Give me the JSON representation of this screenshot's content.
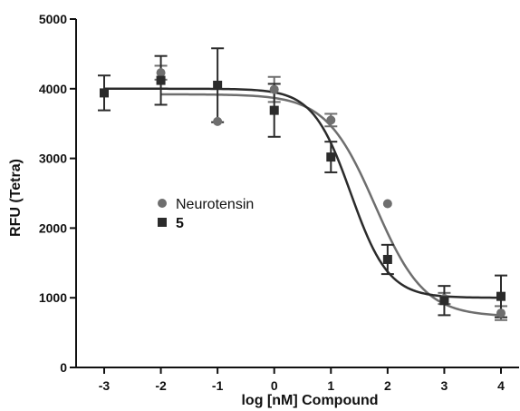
{
  "chart_data": {
    "type": "scatter",
    "title": "",
    "xlabel": "log [nM] Compound",
    "ylabel": "RFU (Tetra)",
    "xlim": [
      -3,
      4
    ],
    "ylim": [
      0,
      5000
    ],
    "x_ticks": [
      "-3",
      "-2",
      "-1",
      "0",
      "1",
      "2",
      "3",
      "4"
    ],
    "y_ticks": [
      "0",
      "1000",
      "2000",
      "3000",
      "4000",
      "5000"
    ],
    "grid": false,
    "legend_position": "center-left",
    "series": [
      {
        "name": "Neurotensin",
        "marker": "circle",
        "color": "#6e6e6e",
        "points": [
          {
            "x": -2,
            "y": 4230,
            "err": 100
          },
          {
            "x": -1,
            "y": 3530,
            "err": 0
          },
          {
            "x": 0,
            "y": 3990,
            "err": 180
          },
          {
            "x": 1,
            "y": 3550,
            "err": 90
          },
          {
            "x": 2,
            "y": 2350,
            "err": 0
          },
          {
            "x": 3,
            "y": 990,
            "err": 80
          },
          {
            "x": 4,
            "y": 780,
            "err": 100
          }
        ],
        "fit": {
          "top": 3920,
          "bottom": 730,
          "logEC50": 1.78,
          "hill": -1.0
        }
      },
      {
        "name": "5",
        "marker": "square",
        "color": "#2b2b2b",
        "points": [
          {
            "x": -3,
            "y": 3940,
            "err": 250
          },
          {
            "x": -2,
            "y": 4120,
            "err": 350
          },
          {
            "x": -1,
            "y": 4050,
            "err": 530
          },
          {
            "x": 0,
            "y": 3690,
            "err": 380
          },
          {
            "x": 1,
            "y": 3020,
            "err": 220
          },
          {
            "x": 2,
            "y": 1550,
            "err": 210
          },
          {
            "x": 3,
            "y": 960,
            "err": 210
          },
          {
            "x": 4,
            "y": 1020,
            "err": 300
          }
        ],
        "fit": {
          "top": 4000,
          "bottom": 1000,
          "logEC50": 1.35,
          "hill": -1.3
        }
      }
    ]
  }
}
